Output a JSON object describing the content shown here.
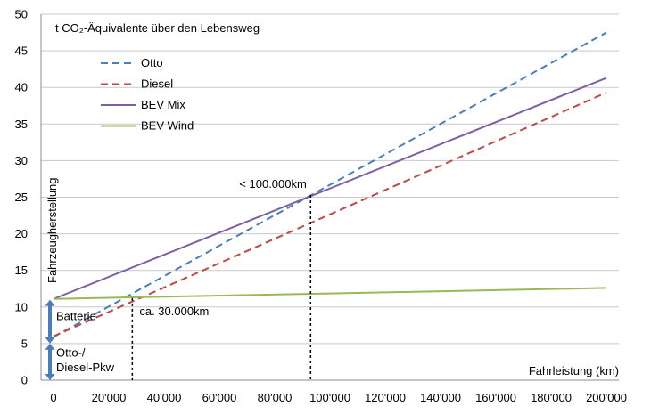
{
  "chart_data": {
    "type": "line",
    "title": "t CO₂-Äquivalente über den Lebensweg",
    "xlabel": "Fahrleistung (km)",
    "ylabel": "Fahrzeugherstellung",
    "xlim": [
      0,
      200000
    ],
    "ylim": [
      0,
      50
    ],
    "x_ticks": [
      "0",
      "20'000",
      "40'000",
      "60'000",
      "80'000",
      "100'000",
      "120'000",
      "140'000",
      "160'000",
      "180'000",
      "200'000"
    ],
    "y_ticks": [
      "0",
      "5",
      "10",
      "15",
      "20",
      "25",
      "30",
      "35",
      "40",
      "45",
      "50"
    ],
    "grid": "horizontal",
    "legend_position": "top-left",
    "series": [
      {
        "name": "Otto",
        "color": "#4a7ebb",
        "dash": "dashed",
        "points": [
          [
            0,
            5.9
          ],
          [
            200000,
            47.5
          ]
        ]
      },
      {
        "name": "Diesel",
        "color": "#be4b48",
        "dash": "dashed",
        "points": [
          [
            0,
            6.0
          ],
          [
            200000,
            39.3
          ]
        ]
      },
      {
        "name": "BEV Mix",
        "color": "#7d60a0",
        "dash": "solid",
        "points": [
          [
            0,
            11.1
          ],
          [
            200000,
            41.3
          ]
        ]
      },
      {
        "name": "BEV Wind",
        "color": "#98b954",
        "dash": "solid",
        "points": [
          [
            0,
            11.1
          ],
          [
            200000,
            12.6
          ]
        ]
      }
    ],
    "annotations": {
      "crossover_high": {
        "text": "< 100.000km",
        "x": 93000,
        "y": 25.3
      },
      "crossover_low": {
        "text": "ca. 30.000km",
        "x": 28500,
        "y": 11.2
      },
      "battery": {
        "text": "Batterie",
        "y_from": 5,
        "y_to": 11
      },
      "vehicle": {
        "text_line1": "Otto-/",
        "text_line2": "Diesel-Pkw",
        "y_from": 0,
        "y_to": 5
      }
    }
  }
}
